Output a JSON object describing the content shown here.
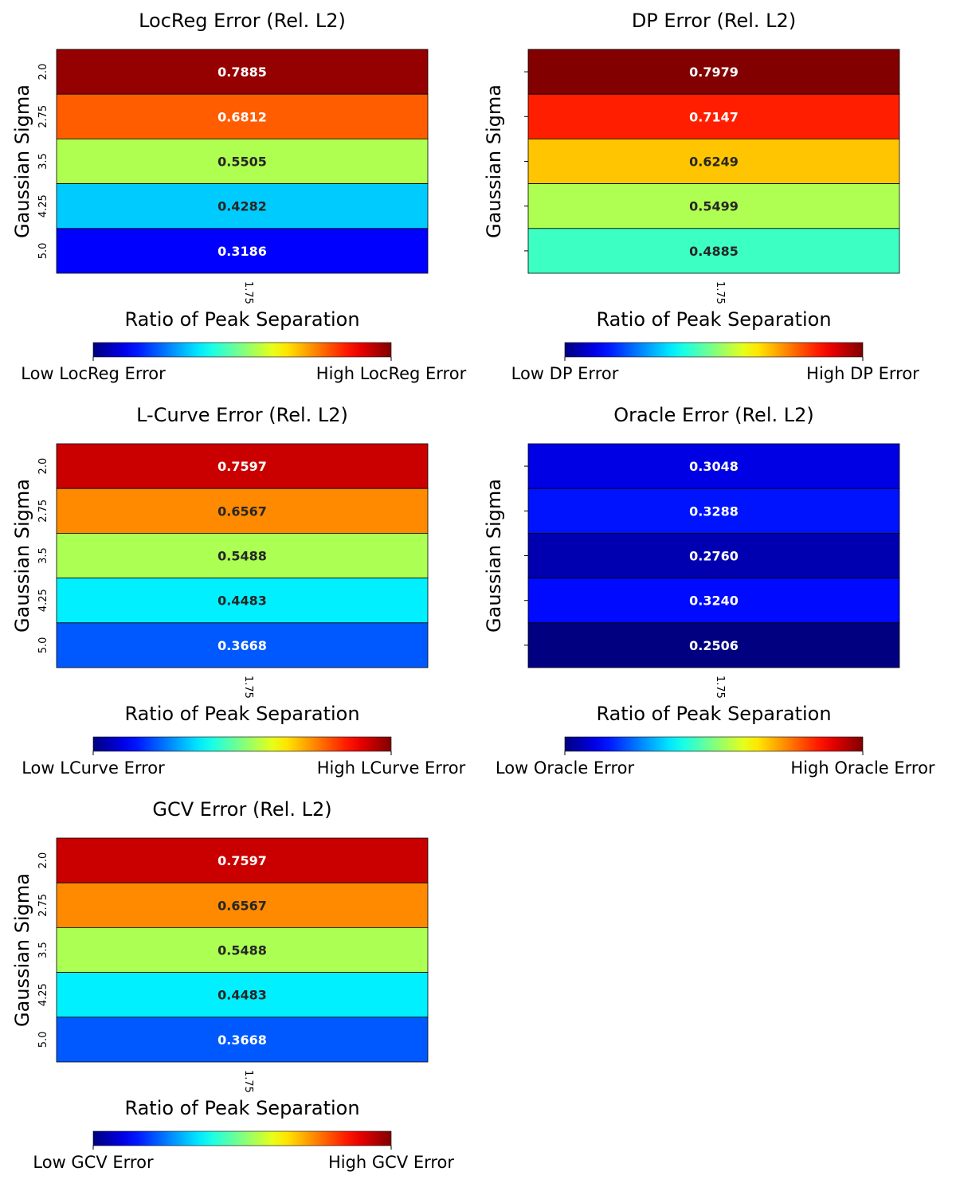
{
  "chart_data": [
    {
      "type": "heatmap",
      "title": "LocReg Error (Rel. L2)",
      "xlabel": "Ratio of Peak Separation",
      "ylabel": "Gaussian Sigma",
      "x_ticks": [
        "1.75"
      ],
      "y_ticks": [
        "2.0",
        "2.75",
        "3.5",
        "4.25",
        "5.0"
      ],
      "values": [
        0.7885,
        0.6812,
        0.5505,
        0.4282,
        0.3186
      ],
      "cell_labels": [
        "0.7885",
        "0.6812",
        "0.5505",
        "0.4282",
        "0.3186"
      ],
      "show_y_tick_labels": true,
      "colorbar": {
        "low_label": "Low LocReg Error",
        "high_label": "High LocReg Error"
      },
      "colormap": "jet"
    },
    {
      "type": "heatmap",
      "title": "DP Error (Rel. L2)",
      "xlabel": "Ratio of Peak Separation",
      "ylabel": "Gaussian Sigma",
      "x_ticks": [
        "1.75"
      ],
      "y_ticks": [
        "2.0",
        "2.75",
        "3.5",
        "4.25",
        "5.0"
      ],
      "values": [
        0.7979,
        0.7147,
        0.6249,
        0.5499,
        0.4885
      ],
      "cell_labels": [
        "0.7979",
        "0.7147",
        "0.6249",
        "0.5499",
        "0.4885"
      ],
      "show_y_tick_labels": false,
      "colorbar": {
        "low_label": "Low DP Error",
        "high_label": "High DP Error"
      },
      "colormap": "jet"
    },
    {
      "type": "heatmap",
      "title": "L-Curve Error (Rel. L2)",
      "xlabel": "Ratio of Peak Separation",
      "ylabel": "Gaussian Sigma",
      "x_ticks": [
        "1.75"
      ],
      "y_ticks": [
        "2.0",
        "2.75",
        "3.5",
        "4.25",
        "5.0"
      ],
      "values": [
        0.7597,
        0.6567,
        0.5488,
        0.4483,
        0.3668
      ],
      "cell_labels": [
        "0.7597",
        "0.6567",
        "0.5488",
        "0.4483",
        "0.3668"
      ],
      "show_y_tick_labels": true,
      "colorbar": {
        "low_label": "Low LCurve Error",
        "high_label": "High LCurve Error"
      },
      "colormap": "jet"
    },
    {
      "type": "heatmap",
      "title": "Oracle Error (Rel. L2)",
      "xlabel": "Ratio of Peak Separation",
      "ylabel": "Gaussian Sigma",
      "x_ticks": [
        "1.75"
      ],
      "y_ticks": [
        "2.0",
        "2.75",
        "3.5",
        "4.25",
        "5.0"
      ],
      "values": [
        0.3048,
        0.3288,
        0.276,
        0.324,
        0.2506
      ],
      "cell_labels": [
        "0.3048",
        "0.3288",
        "0.2760",
        "0.3240",
        "0.2506"
      ],
      "show_y_tick_labels": false,
      "colorbar": {
        "low_label": "Low Oracle Error",
        "high_label": "High Oracle Error"
      },
      "colormap": "jet"
    },
    {
      "type": "heatmap",
      "title": "GCV Error (Rel. L2)",
      "xlabel": "Ratio of Peak Separation",
      "ylabel": "Gaussian Sigma",
      "x_ticks": [
        "1.75"
      ],
      "y_ticks": [
        "2.0",
        "2.75",
        "3.5",
        "4.25",
        "5.0"
      ],
      "values": [
        0.7597,
        0.6567,
        0.5488,
        0.4483,
        0.3668
      ],
      "cell_labels": [
        "0.7597",
        "0.6567",
        "0.5488",
        "0.4483",
        "0.3668"
      ],
      "show_y_tick_labels": true,
      "colorbar": {
        "low_label": "Low GCV Error",
        "high_label": "High GCV Error"
      },
      "colormap": "jet"
    }
  ]
}
